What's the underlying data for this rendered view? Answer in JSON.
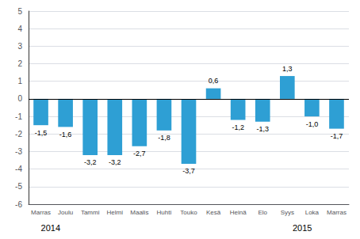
{
  "chart_data": {
    "type": "bar",
    "categories": [
      "Marras",
      "Joulu",
      "Tammi",
      "Helmi",
      "Maalis",
      "Huhti",
      "Touko",
      "Kesä",
      "Heinä",
      "Elo",
      "Syys",
      "Loka",
      "Marras"
    ],
    "values": [
      -1.5,
      -1.6,
      -3.2,
      -3.2,
      -2.7,
      -1.8,
      -3.7,
      0.6,
      -1.2,
      -1.3,
      1.3,
      -1.0,
      -1.7
    ],
    "value_labels": [
      "-1,5",
      "-1,6",
      "-3,2",
      "-3,2",
      "-2,7",
      "-1,8",
      "-3,7",
      "0,6",
      "-1,2",
      "-1,3",
      "1,3",
      "-1,0",
      "-1,7"
    ],
    "data_labels": true,
    "color": "#2e9fd4",
    "ylim": [
      -6,
      5
    ],
    "yticks": [
      -6,
      -5,
      -4,
      -3,
      -2,
      -1,
      0,
      1,
      2,
      3,
      4,
      5
    ],
    "grid": true,
    "annotations": [
      {
        "text": "2014",
        "category_index": 0
      },
      {
        "text": "2015",
        "category_index": 11
      }
    ]
  }
}
